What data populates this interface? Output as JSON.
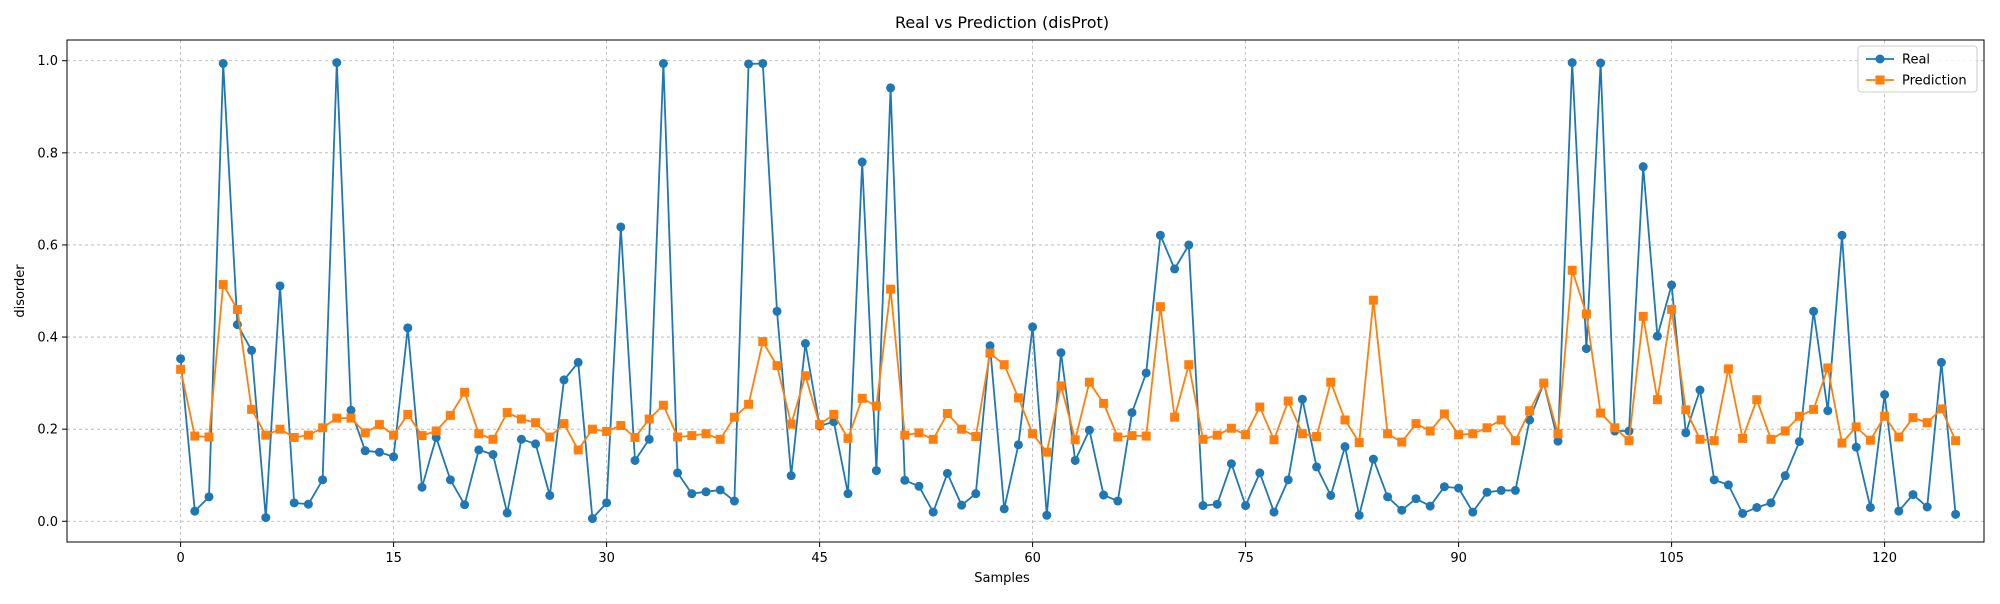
{
  "chart_data": {
    "type": "line",
    "title": "Real vs Prediction (disProt)",
    "xlabel": "Samples",
    "ylabel": "disorder",
    "xlim": [
      -8,
      127
    ],
    "ylim": [
      -0.045,
      1.045
    ],
    "xticks": [
      0,
      15,
      30,
      45,
      60,
      75,
      90,
      105,
      120
    ],
    "yticks": [
      0.0,
      0.2,
      0.4,
      0.6,
      0.8,
      1.0
    ],
    "grid": true,
    "legend_position": "top-right",
    "series": [
      {
        "name": "Real",
        "color": "#1f77b4",
        "marker": "circle",
        "values": [
          0.353,
          0.022,
          0.053,
          0.994,
          0.427,
          0.371,
          0.008,
          0.511,
          0.04,
          0.037,
          0.09,
          0.996,
          0.241,
          0.153,
          0.15,
          0.14,
          0.42,
          0.074,
          0.182,
          0.09,
          0.036,
          0.155,
          0.145,
          0.018,
          0.178,
          0.168,
          0.056,
          0.307,
          0.345,
          0.006,
          0.04,
          0.639,
          0.132,
          0.178,
          0.994,
          0.105,
          0.06,
          0.064,
          0.068,
          0.044,
          0.993,
          0.994,
          0.456,
          0.099,
          0.386,
          0.207,
          0.216,
          0.06,
          0.78,
          0.11,
          0.941,
          0.089,
          0.076,
          0.02,
          0.104,
          0.035,
          0.06,
          0.381,
          0.027,
          0.166,
          0.422,
          0.013,
          0.366,
          0.132,
          0.198,
          0.057,
          0.044,
          0.236,
          0.322,
          0.621,
          0.548,
          0.6,
          0.034,
          0.037,
          0.125,
          0.034,
          0.105,
          0.02,
          0.09,
          0.265,
          0.118,
          0.056,
          0.162,
          0.013,
          0.135,
          0.053,
          0.024,
          0.049,
          0.033,
          0.075,
          0.072,
          0.02,
          0.063,
          0.067,
          0.067,
          0.22,
          0.3,
          0.174,
          0.996,
          0.375,
          0.995,
          0.196,
          0.196,
          0.77,
          0.402,
          0.513,
          0.192,
          0.285,
          0.09,
          0.079,
          0.017,
          0.03,
          0.04,
          0.099,
          0.173,
          0.456,
          0.24,
          0.621,
          0.161,
          0.03,
          0.275,
          0.022,
          0.058,
          0.031,
          0.345,
          0.015
        ]
      },
      {
        "name": "Prediction",
        "color": "#ff7f0e",
        "marker": "square",
        "values": [
          0.33,
          0.185,
          0.183,
          0.514,
          0.46,
          0.243,
          0.187,
          0.2,
          0.182,
          0.187,
          0.203,
          0.224,
          0.224,
          0.192,
          0.21,
          0.187,
          0.232,
          0.186,
          0.196,
          0.23,
          0.28,
          0.19,
          0.178,
          0.236,
          0.222,
          0.214,
          0.183,
          0.212,
          0.155,
          0.2,
          0.195,
          0.208,
          0.182,
          0.222,
          0.252,
          0.183,
          0.186,
          0.19,
          0.178,
          0.226,
          0.254,
          0.39,
          0.338,
          0.211,
          0.316,
          0.21,
          0.232,
          0.18,
          0.267,
          0.25,
          0.504,
          0.187,
          0.192,
          0.178,
          0.234,
          0.2,
          0.184,
          0.365,
          0.34,
          0.268,
          0.19,
          0.15,
          0.294,
          0.177,
          0.302,
          0.256,
          0.183,
          0.186,
          0.185,
          0.466,
          0.226,
          0.34,
          0.178,
          0.187,
          0.202,
          0.188,
          0.248,
          0.177,
          0.261,
          0.19,
          0.184,
          0.302,
          0.22,
          0.171,
          0.48,
          0.19,
          0.172,
          0.212,
          0.196,
          0.233,
          0.188,
          0.19,
          0.203,
          0.22,
          0.175,
          0.24,
          0.3,
          0.19,
          0.545,
          0.45,
          0.235,
          0.203,
          0.175,
          0.445,
          0.264,
          0.46,
          0.242,
          0.178,
          0.175,
          0.331,
          0.18,
          0.264,
          0.178,
          0.196,
          0.228,
          0.243,
          0.333,
          0.17,
          0.205,
          0.176,
          0.228,
          0.183,
          0.225,
          0.214,
          0.244,
          0.175
        ]
      }
    ]
  }
}
